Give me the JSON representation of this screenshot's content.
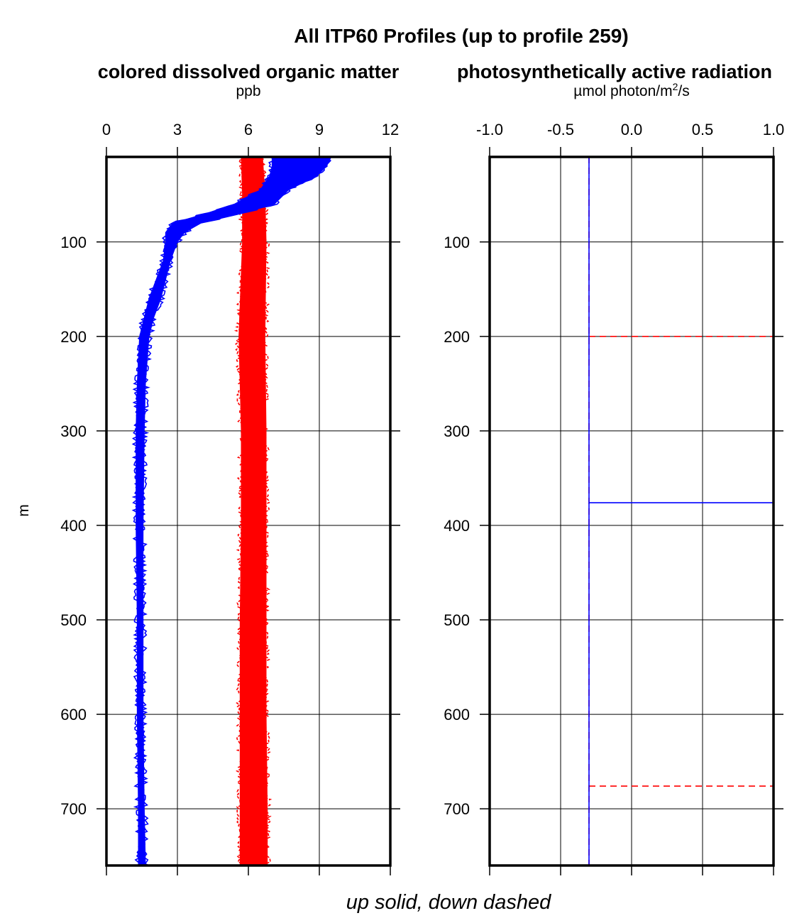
{
  "chart_data": {
    "title": "All ITP60 Profiles (up to profile 259)",
    "footer": "up solid, down dashed",
    "ylabel": "m",
    "y_ticks": [
      100,
      200,
      300,
      400,
      500,
      600,
      700
    ],
    "ylim": [
      10,
      760
    ],
    "y_inverted": true,
    "grid": true,
    "panels": [
      {
        "type": "line",
        "title": "colored dissolved organic matter",
        "unit": "ppb",
        "xlim": [
          0,
          12
        ],
        "x_ticks": [
          "0",
          "3",
          "6",
          "9",
          "12"
        ],
        "x_tick_values": [
          0,
          3,
          6,
          9,
          12
        ],
        "series": [
          {
            "color": "#ff0000",
            "style": "dashed",
            "band": true,
            "depth": [
              10,
              50,
              100,
              200,
              300,
              400,
              500,
              600,
              700,
              760
            ],
            "low": [
              5.7,
              5.75,
              5.75,
              5.6,
              5.7,
              5.7,
              5.65,
              5.65,
              5.65,
              5.65
            ],
            "high": [
              6.6,
              6.7,
              6.75,
              6.7,
              6.75,
              6.75,
              6.75,
              6.75,
              6.8,
              6.8
            ]
          },
          {
            "color": "#0000ff",
            "style": "solid",
            "band": true,
            "depth": [
              10,
              20,
              30,
              45,
              60,
              70,
              80,
              90,
              100,
              120,
              140,
              160,
              180,
              200,
              250,
              300,
              400,
              500,
              600,
              700,
              760
            ],
            "low": [
              7.0,
              7.0,
              6.9,
              6.5,
              5.4,
              4.2,
              2.8,
              2.5,
              2.5,
              2.4,
              2.1,
              1.8,
              1.6,
              1.4,
              1.3,
              1.25,
              1.25,
              1.3,
              1.3,
              1.35,
              1.35
            ],
            "high": [
              9.5,
              9.3,
              8.9,
              7.7,
              7.1,
              5.7,
              4.0,
              3.3,
              3.0,
              2.7,
              2.5,
              2.3,
              2.0,
              1.8,
              1.65,
              1.6,
              1.55,
              1.55,
              1.55,
              1.6,
              1.65
            ]
          }
        ]
      },
      {
        "type": "line",
        "title": "photosynthetically active radiation",
        "unit_prefix": "µmol photon/m",
        "unit_sup": "2",
        "unit_suffix": "/s",
        "xlim": [
          -1.0,
          1.0
        ],
        "x_ticks": [
          "-1.0",
          "-0.5",
          "0.0",
          "0.5",
          "1.0"
        ],
        "x_tick_values": [
          -1.0,
          -0.5,
          0.0,
          0.5,
          1.0
        ],
        "series": [
          {
            "color": "#ff0000",
            "style": "dashed",
            "segments": [
              [
                [
                  -0.3,
                  10
                ],
                [
                  -0.3,
                  760
                ]
              ],
              [
                [
                  -0.3,
                  200
                ],
                [
                  1.0,
                  200
                ]
              ],
              [
                [
                  -0.3,
                  676
                ],
                [
                  1.0,
                  676
                ]
              ]
            ]
          },
          {
            "color": "#0000ff",
            "style": "solid",
            "segments": [
              [
                [
                  -0.3,
                  10
                ],
                [
                  -0.3,
                  760
                ]
              ],
              [
                [
                  -0.3,
                  376
                ],
                [
                  1.0,
                  376
                ]
              ]
            ]
          }
        ]
      }
    ]
  }
}
